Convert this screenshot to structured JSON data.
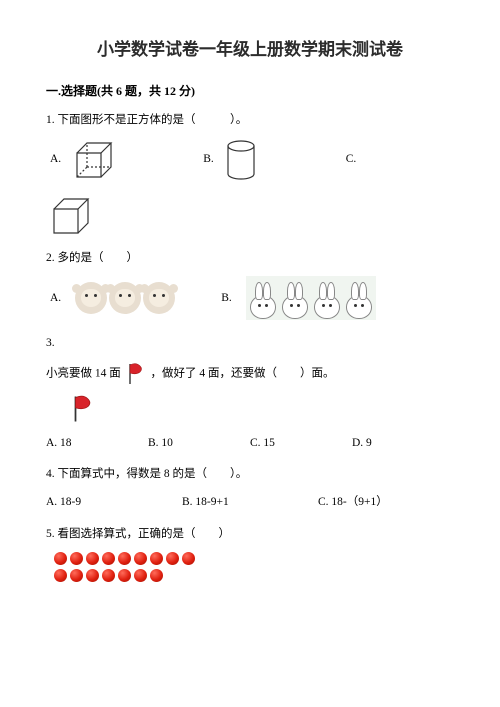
{
  "title": "小学数学试卷一年级上册数学期末测试卷",
  "section": {
    "label": "一.选择题",
    "meta": "(共 6 题，共 12 分)"
  },
  "q1": {
    "text": "1. 下面图形不是正方体的是（　　　）。",
    "A": "A.",
    "B": "B.",
    "C": "C.",
    "cube_stroke": "#333333",
    "cylinder_stroke": "#333333"
  },
  "q2": {
    "text": "2. 多的是（　　）",
    "A": "A.",
    "B": "B.",
    "monkey_count": 3,
    "bunny_count": 4
  },
  "q3": {
    "num": "3.",
    "text_a": "小亮要做 14 面",
    "text_b": "，做好了 4 面，还要做（　　）面。",
    "A": "A. 18",
    "B": "B. 10",
    "C": "C. 15",
    "D": "D. 9",
    "flag_fill": "#d8232a",
    "pole_stroke": "#333333"
  },
  "q4": {
    "text": "4. 下面算式中，得数是 8 的是（　　）。",
    "A": "A. 18-9",
    "B": "B. 18-9+1",
    "C": "C. 18-（9+1）"
  },
  "q5": {
    "text": "5. 看图选择算式，正确的是（　　）",
    "row1_count": 9,
    "row2_count": 7,
    "dot_color": "#e02010"
  }
}
